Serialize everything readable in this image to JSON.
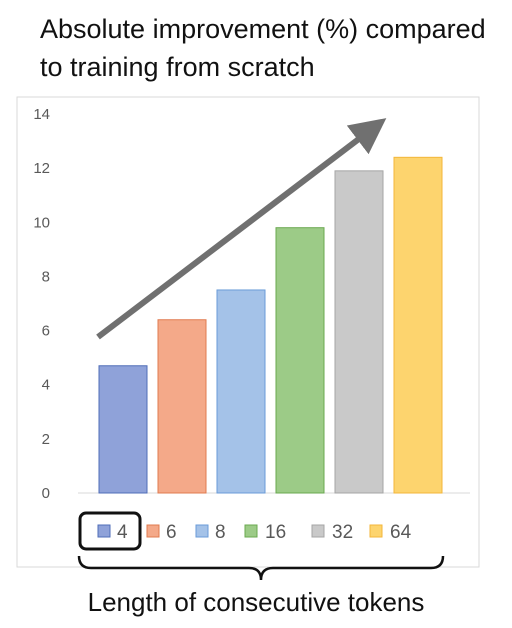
{
  "title_line1": "Absolute improvement (%) compared",
  "title_line2": "to training from scratch",
  "caption": "Length of consecutive tokens",
  "chart_data": {
    "type": "bar",
    "categories": [
      "4",
      "6",
      "8",
      "16",
      "32",
      "64"
    ],
    "values": [
      4.7,
      6.4,
      7.5,
      9.8,
      11.9,
      12.4
    ],
    "colors": [
      "#8fa2d9",
      "#f4a989",
      "#a4c2e8",
      "#9ccb87",
      "#c9c9c9",
      "#fdd46e"
    ],
    "borders": [
      "#4f6db8",
      "#e07b4f",
      "#6a9bd8",
      "#6aa84f",
      "#a5a5a5",
      "#f3b63a"
    ],
    "yticks": [
      0,
      2,
      4,
      6,
      8,
      10,
      12,
      14
    ],
    "ylim": [
      0,
      14
    ],
    "grid": false,
    "legend_position": "bottom",
    "legend_highlight": "4",
    "annotation": "upward trend arrow",
    "title": "Absolute improvement (%) compared to training from scratch",
    "xlabel": "Length of consecutive tokens",
    "ylabel": ""
  }
}
